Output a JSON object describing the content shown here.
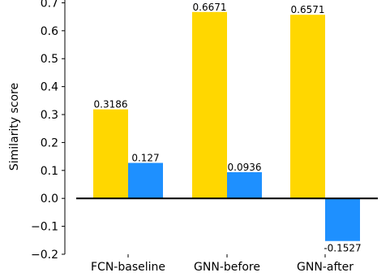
{
  "chart_data": {
    "type": "bar",
    "title": "",
    "xlabel": "",
    "ylabel": "Similarity score",
    "ylim": [
      -0.2,
      0.71
    ],
    "yticks": [
      -0.2,
      -0.1,
      0.0,
      0.1,
      0.2,
      0.3,
      0.4,
      0.5,
      0.6,
      0.7
    ],
    "ytick_labels": [
      "−0.2",
      "−0.1",
      "0.0",
      "0.1",
      "0.2",
      "0.3",
      "0.4",
      "0.5",
      "0.6",
      "0.7"
    ],
    "categories": [
      "FCN-baseline",
      "GNN-before",
      "GNN-after"
    ],
    "series": [
      {
        "values": [
          0.3186,
          0.6671,
          0.6571
        ],
        "labels": [
          "0.3186",
          "0.6671",
          "0.6571"
        ],
        "color": "#FFD700"
      },
      {
        "values": [
          0.127,
          0.0936,
          -0.1527
        ],
        "labels": [
          "0.127",
          "0.0936",
          "-0.1527"
        ],
        "color": "#1E90FF"
      }
    ],
    "zero_line": true,
    "grid": false,
    "legend": "none"
  }
}
